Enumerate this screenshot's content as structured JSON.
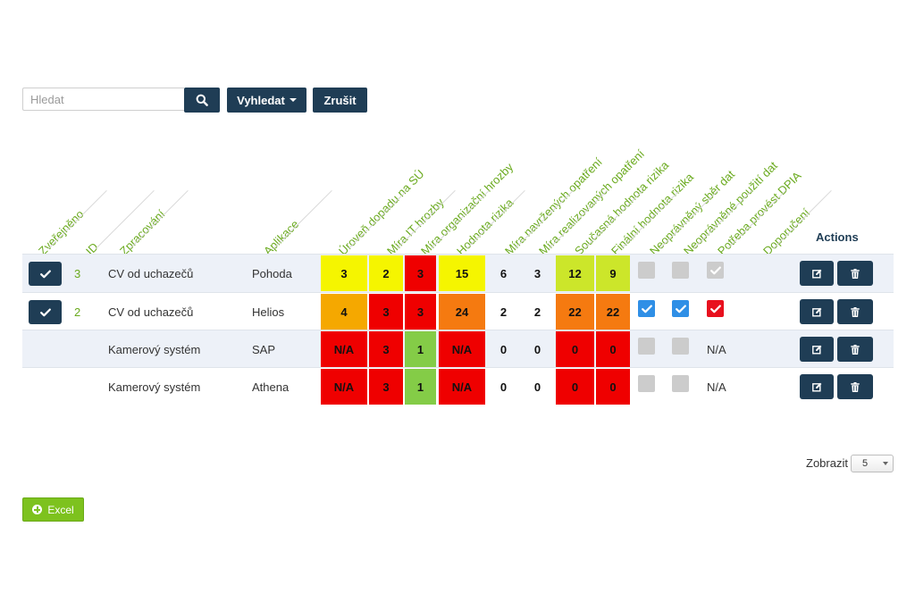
{
  "search": {
    "placeholder": "Hledat",
    "value": "",
    "search_button_icon": "search-icon",
    "vyhledat_label": "Vyhledat",
    "zrusit_label": "Zrušit"
  },
  "headers": {
    "zverejneno": "Zveřejněno",
    "id": "ID",
    "zpracovani": "Zpracování",
    "aplikace": "Aplikace",
    "uroven_dopadu": "Úroveň dopadu na SÚ",
    "mira_it_hrozby": "Míra IT hrozby",
    "mira_org_hrozby": "Míra organizační hrozby",
    "hodnota_rizika": "Hodnota rizika",
    "mira_navrzenych": "Míra navržených opatření",
    "mira_realizovanych": "Míra realizovaných opatření",
    "soucasna_hodnota": "Současná hodnota rizika",
    "finalni_hodnota": "Finální hodnota rizika",
    "neopravneny_sber": "Neoprávněný sběr dat",
    "neopravnene_pouziti": "Neoprávněné použití dat",
    "potreba_dpia": "Potřeba provést DPIA",
    "doporuceni": "Doporučení",
    "actions": "Actions"
  },
  "colors": {
    "yellow": "#f5f500",
    "red": "#ef0000",
    "orange": "#f57a10",
    "amber": "#f5a800",
    "green": "#84cc47",
    "lime": "#cce62a",
    "blue_check": "#2f8fe6",
    "red_check": "#e8101e",
    "gray_check": "#cccccc",
    "dark_navy": "#1f3d55"
  },
  "rows": [
    {
      "published": true,
      "id": "3",
      "zpracovani": "CV od uchazečů",
      "aplikace": "Pohoda",
      "uroven": "3",
      "it": "2",
      "org": "3",
      "hodnota": "15",
      "navrz": "6",
      "realiz": "3",
      "soucasna": "12",
      "finalni": "9",
      "sber": "unchecked",
      "pouziti": "unchecked",
      "dpia": "disabled-checked",
      "dpia_text": ""
    },
    {
      "published": true,
      "id": "2",
      "zpracovani": "CV od uchazečů",
      "aplikace": "Helios",
      "uroven": "4",
      "it": "3",
      "org": "3",
      "hodnota": "24",
      "navrz": "2",
      "realiz": "2",
      "soucasna": "22",
      "finalni": "22",
      "sber": "checked",
      "pouziti": "checked",
      "dpia": "checked-red",
      "dpia_text": ""
    },
    {
      "published": false,
      "id": "",
      "zpracovani": "Kamerový systém",
      "aplikace": "SAP",
      "uroven": "N/A",
      "it": "3",
      "org": "1",
      "hodnota": "N/A",
      "navrz": "0",
      "realiz": "0",
      "soucasna": "0",
      "finalni": "0",
      "sber": "unchecked",
      "pouziti": "unchecked",
      "dpia": "na",
      "dpia_text": "N/A"
    },
    {
      "published": false,
      "id": "",
      "zpracovani": "Kamerový systém",
      "aplikace": "Athena",
      "uroven": "N/A",
      "it": "3",
      "org": "1",
      "hodnota": "N/A",
      "navrz": "0",
      "realiz": "0",
      "soucasna": "0",
      "finalni": "0",
      "sber": "unchecked",
      "pouziti": "unchecked",
      "dpia": "na",
      "dpia_text": "N/A"
    }
  ],
  "footer": {
    "zobrazit_label": "Zobrazit",
    "page_size": "5",
    "excel_label": "Excel"
  }
}
